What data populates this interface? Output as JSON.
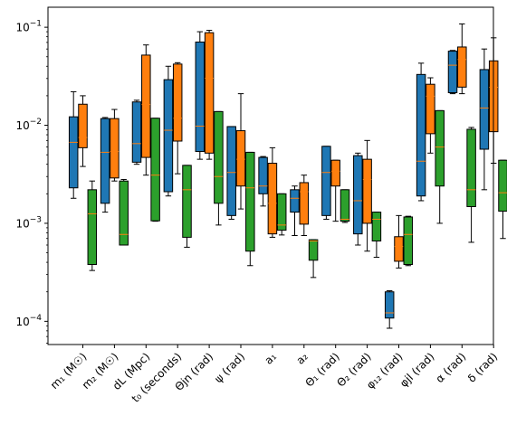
{
  "chart_data": {
    "type": "boxplot",
    "y_scale": "log",
    "ylim": [
      5.8e-05,
      0.16
    ],
    "y_ticks": [
      {
        "value": 0.1,
        "mant": "10",
        "exp": "−1"
      },
      {
        "value": 0.01,
        "mant": "10",
        "exp": "−2"
      },
      {
        "value": 0.001,
        "mant": "10",
        "exp": "−3"
      },
      {
        "value": 0.0001,
        "mant": "10",
        "exp": "−4"
      }
    ],
    "categories": [
      "m₁ (M☉)",
      "m₂ (M☉)",
      "dL (Mpc)",
      "t₀ (seconds)",
      "Θjn (rad)",
      "ψ (rad)",
      "a₁",
      "a₂",
      "Θ₁ (rad)",
      "Θ₂ (rad)",
      "φ₁₂ (rad)",
      "φjl (rad)",
      "α (rad)",
      "δ (rad)"
    ],
    "series_colors": [
      "#1f77b4",
      "#ff7f0e",
      "#2ca02c"
    ],
    "median_color": "#ff7f0e",
    "series": [
      {
        "boxes": [
          {
            "whislo": 0.0018,
            "q1": 0.0023,
            "med": 0.0067,
            "q3": 0.0122,
            "whishi": 0.022
          },
          {
            "whislo": 0.0013,
            "q1": 0.0016,
            "med": 0.0053,
            "q3": 0.0117,
            "whishi": 0.012
          },
          {
            "whislo": 0.004,
            "q1": 0.0042,
            "med": 0.0065,
            "q3": 0.0173,
            "whishi": 0.018
          },
          {
            "whislo": 0.0019,
            "q1": 0.0021,
            "med": 0.0089,
            "q3": 0.0292,
            "whishi": 0.04
          },
          {
            "whislo": 0.0045,
            "q1": 0.0054,
            "med": 0.0098,
            "q3": 0.0706,
            "whishi": 0.09
          },
          {
            "whislo": 0.0011,
            "q1": 0.0012,
            "med": 0.0033,
            "q3": 0.0097,
            "whishi": 0.0097
          },
          {
            "whislo": 0.0015,
            "q1": 0.002,
            "med": 0.0024,
            "q3": 0.0047,
            "whishi": 0.0048
          },
          {
            "whislo": 0.00075,
            "q1": 0.0013,
            "med": 0.0018,
            "q3": 0.0022,
            "whishi": 0.0024
          },
          {
            "whislo": 0.0011,
            "q1": 0.0012,
            "med": 0.0033,
            "q3": 0.0061,
            "whishi": 0.0061
          },
          {
            "whislo": 0.0006,
            "q1": 0.00078,
            "med": 0.0017,
            "q3": 0.0049,
            "whishi": 0.0052
          },
          {
            "whislo": 8.5e-05,
            "q1": 0.000108,
            "med": 0.000122,
            "q3": 0.0002,
            "whishi": 0.000205
          },
          {
            "whislo": 0.0017,
            "q1": 0.0019,
            "med": 0.0043,
            "q3": 0.033,
            "whishi": 0.043
          },
          {
            "whislo": 0.021,
            "q1": 0.0215,
            "med": 0.041,
            "q3": 0.057,
            "whishi": 0.058
          },
          {
            "whislo": 0.0022,
            "q1": 0.0057,
            "med": 0.015,
            "q3": 0.037,
            "whishi": 0.06
          }
        ]
      },
      {
        "boxes": [
          {
            "whislo": 0.0038,
            "q1": 0.0059,
            "med": 0.0075,
            "q3": 0.0164,
            "whishi": 0.02
          },
          {
            "whislo": 0.0027,
            "q1": 0.0029,
            "med": 0.0054,
            "q3": 0.0117,
            "whishi": 0.0145
          },
          {
            "whislo": 0.0031,
            "q1": 0.0047,
            "med": 0.0163,
            "q3": 0.052,
            "whishi": 0.066
          },
          {
            "whislo": 0.0032,
            "q1": 0.0069,
            "med": 0.0118,
            "q3": 0.0421,
            "whishi": 0.0435
          },
          {
            "whislo": 0.0045,
            "q1": 0.0052,
            "med": 0.0302,
            "q3": 0.088,
            "whishi": 0.093
          },
          {
            "whislo": 0.0014,
            "q1": 0.0024,
            "med": 0.0045,
            "q3": 0.0088,
            "whishi": 0.021
          },
          {
            "whislo": 0.00072,
            "q1": 0.00078,
            "med": 0.0016,
            "q3": 0.0041,
            "whishi": 0.0059
          },
          {
            "whislo": 0.00075,
            "q1": 0.00098,
            "med": 0.0021,
            "q3": 0.0026,
            "whishi": 0.0031
          },
          {
            "whislo": 0.00105,
            "q1": 0.0024,
            "med": 0.0034,
            "q3": 0.0044,
            "whishi": 0.0044
          },
          {
            "whislo": 0.00052,
            "q1": 0.001,
            "med": 0.0028,
            "q3": 0.0045,
            "whishi": 0.007
          },
          {
            "whislo": 0.00035,
            "q1": 0.00041,
            "med": 0.00058,
            "q3": 0.00073,
            "whishi": 0.0012
          },
          {
            "whislo": 0.0052,
            "q1": 0.0082,
            "med": 0.0198,
            "q3": 0.0262,
            "whishi": 0.0305
          },
          {
            "whislo": 0.021,
            "q1": 0.0245,
            "med": 0.0469,
            "q3": 0.0629,
            "whishi": 0.108
          },
          {
            "whislo": 0.0041,
            "q1": 0.0086,
            "med": 0.0244,
            "q3": 0.0454,
            "whishi": 0.078
          }
        ]
      },
      {
        "boxes": [
          {
            "whislo": 0.00033,
            "q1": 0.00038,
            "med": 0.00125,
            "q3": 0.0022,
            "whishi": 0.0027
          },
          {
            "whislo": 0.0006,
            "q1": 0.0006,
            "med": 0.00077,
            "q3": 0.0027,
            "whishi": 0.0028
          },
          {
            "whislo": 0.00105,
            "q1": 0.00106,
            "med": 0.0031,
            "q3": 0.0118,
            "whishi": 0.0118
          },
          {
            "whislo": 0.00057,
            "q1": 0.00072,
            "med": 0.0022,
            "q3": 0.0039,
            "whishi": 0.0039
          },
          {
            "whislo": 0.00096,
            "q1": 0.0016,
            "med": 0.003,
            "q3": 0.0138,
            "whishi": 0.0138
          },
          {
            "whislo": 0.00037,
            "q1": 0.00052,
            "med": 0.0023,
            "q3": 0.0053,
            "whishi": 0.0053
          },
          {
            "whislo": 0.00076,
            "q1": 0.00085,
            "med": 0.00096,
            "q3": 0.002,
            "whishi": 0.002
          },
          {
            "whislo": 0.00028,
            "q1": 0.00042,
            "med": 0.00066,
            "q3": 0.00068,
            "whishi": 0.00068
          },
          {
            "whislo": 0.00102,
            "q1": 0.00105,
            "med": 0.0011,
            "q3": 0.0022,
            "whishi": 0.0022
          },
          {
            "whislo": 0.00045,
            "q1": 0.00066,
            "med": 0.0011,
            "q3": 0.0013,
            "whishi": 0.0013
          },
          {
            "whislo": 0.00037,
            "q1": 0.00038,
            "med": 0.00077,
            "q3": 0.00116,
            "whishi": 0.00118
          },
          {
            "whislo": 0.001,
            "q1": 0.0024,
            "med": 0.006,
            "q3": 0.0141,
            "whishi": 0.0141
          },
          {
            "whislo": 0.00064,
            "q1": 0.00148,
            "med": 0.0022,
            "q3": 0.0091,
            "whishi": 0.0095
          },
          {
            "whislo": 0.0007,
            "q1": 0.00133,
            "med": 0.00205,
            "q3": 0.0044,
            "whishi": 0.0044
          }
        ]
      }
    ]
  }
}
